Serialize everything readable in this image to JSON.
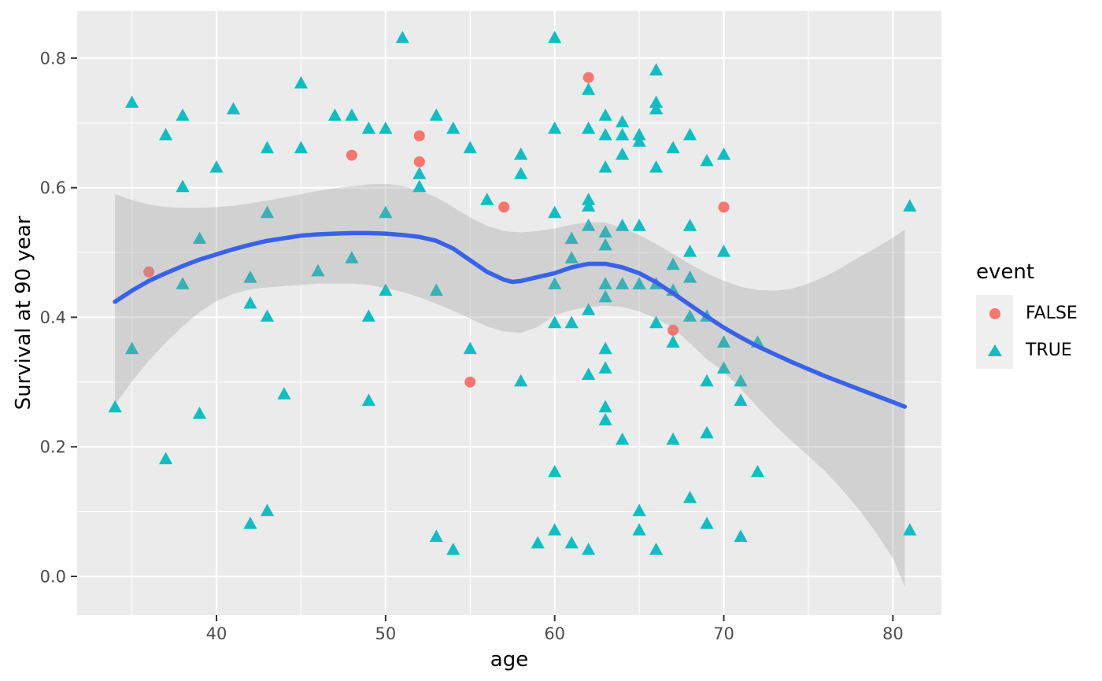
{
  "colors": {
    "panel": "#EBEBEB",
    "grid": "#FFFFFF",
    "point_false": "#F8766D",
    "point_true": "#0FBEC3",
    "smooth_line": "#3A62E8",
    "ribbon": "rgba(150,150,150,0.30)",
    "tick_mark": "#333333",
    "tick_text": "#4D4D4D",
    "axis_text": "#000000"
  },
  "legend": {
    "title": "event",
    "items": [
      {
        "label": "FALSE",
        "marker": "circle",
        "color": "#F8766D"
      },
      {
        "label": "TRUE",
        "marker": "triangle",
        "color": "#0FBEC3"
      }
    ]
  },
  "chart_data": {
    "type": "scatter",
    "title": "",
    "xlabel": "age",
    "ylabel": "Survival at 90 year",
    "xlim": [
      31.76,
      82.87
    ],
    "ylim": [
      -0.0595,
      0.8727
    ],
    "x_ticks": [
      40,
      50,
      60,
      70,
      80
    ],
    "x_tick_labels": [
      "40",
      "50",
      "60",
      "70",
      "80"
    ],
    "x_minor": [
      35,
      45,
      55,
      65,
      75
    ],
    "y_ticks": [
      0.0,
      0.2,
      0.4,
      0.6,
      0.8
    ],
    "y_tick_labels": [
      "0.0",
      "0.2",
      "0.4",
      "0.6",
      "0.8"
    ],
    "y_minor": [
      0.1,
      0.3,
      0.5,
      0.7
    ],
    "grid": true,
    "legend_position": "right",
    "series": [
      {
        "name": "FALSE",
        "marker": "circle",
        "color": "#F8766D",
        "points": [
          [
            36,
            0.47
          ],
          [
            48,
            0.65
          ],
          [
            52,
            0.68
          ],
          [
            52,
            0.64
          ],
          [
            57,
            0.57
          ],
          [
            62,
            0.77
          ],
          [
            55,
            0.3
          ],
          [
            67,
            0.38
          ],
          [
            70,
            0.57
          ]
        ]
      },
      {
        "name": "TRUE",
        "marker": "triangle",
        "color": "#0FBEC3",
        "points": [
          [
            35,
            0.73
          ],
          [
            38,
            0.71
          ],
          [
            37,
            0.68
          ],
          [
            41,
            0.72
          ],
          [
            45,
            0.76
          ],
          [
            43,
            0.66
          ],
          [
            45,
            0.66
          ],
          [
            47,
            0.71
          ],
          [
            48,
            0.71
          ],
          [
            49,
            0.69
          ],
          [
            40,
            0.63
          ],
          [
            38,
            0.6
          ],
          [
            43,
            0.56
          ],
          [
            39,
            0.52
          ],
          [
            38,
            0.45
          ],
          [
            42,
            0.46
          ],
          [
            46,
            0.47
          ],
          [
            48,
            0.49
          ],
          [
            51,
            0.83
          ],
          [
            60,
            0.83
          ],
          [
            62,
            0.75
          ],
          [
            66,
            0.78
          ],
          [
            66,
            0.73
          ],
          [
            66,
            0.72
          ],
          [
            63,
            0.71
          ],
          [
            53,
            0.71
          ],
          [
            50,
            0.69
          ],
          [
            52,
            0.62
          ],
          [
            54,
            0.69
          ],
          [
            60,
            0.69
          ],
          [
            62,
            0.69
          ],
          [
            63,
            0.68
          ],
          [
            64,
            0.7
          ],
          [
            64,
            0.68
          ],
          [
            65,
            0.68
          ],
          [
            65,
            0.67
          ],
          [
            55,
            0.66
          ],
          [
            58,
            0.65
          ],
          [
            63,
            0.63
          ],
          [
            64,
            0.65
          ],
          [
            66,
            0.63
          ],
          [
            58,
            0.62
          ],
          [
            52,
            0.6
          ],
          [
            56,
            0.58
          ],
          [
            60,
            0.56
          ],
          [
            62,
            0.58
          ],
          [
            62,
            0.57
          ],
          [
            50,
            0.56
          ],
          [
            62,
            0.54
          ],
          [
            63,
            0.53
          ],
          [
            63,
            0.51
          ],
          [
            64,
            0.54
          ],
          [
            65,
            0.54
          ],
          [
            61,
            0.52
          ],
          [
            61,
            0.49
          ],
          [
            60,
            0.45
          ],
          [
            50,
            0.44
          ],
          [
            53,
            0.44
          ],
          [
            63,
            0.45
          ],
          [
            63,
            0.43
          ],
          [
            64,
            0.45
          ],
          [
            65,
            0.45
          ],
          [
            62,
            0.41
          ],
          [
            68,
            0.68
          ],
          [
            67,
            0.66
          ],
          [
            69,
            0.64
          ],
          [
            70,
            0.65
          ],
          [
            81,
            0.57
          ],
          [
            68,
            0.54
          ],
          [
            68,
            0.5
          ],
          [
            70,
            0.5
          ],
          [
            67,
            0.48
          ],
          [
            68,
            0.46
          ],
          [
            66,
            0.45
          ],
          [
            67,
            0.44
          ],
          [
            42,
            0.42
          ],
          [
            43,
            0.4
          ],
          [
            35,
            0.35
          ],
          [
            34,
            0.26
          ],
          [
            39,
            0.25
          ],
          [
            44,
            0.28
          ],
          [
            49,
            0.27
          ],
          [
            37,
            0.18
          ],
          [
            43,
            0.1
          ],
          [
            42,
            0.08
          ],
          [
            49,
            0.4
          ],
          [
            60,
            0.39
          ],
          [
            61,
            0.39
          ],
          [
            66,
            0.39
          ],
          [
            55,
            0.35
          ],
          [
            63,
            0.35
          ],
          [
            62,
            0.31
          ],
          [
            63,
            0.32
          ],
          [
            58,
            0.3
          ],
          [
            63,
            0.26
          ],
          [
            63,
            0.24
          ],
          [
            64,
            0.21
          ],
          [
            60,
            0.16
          ],
          [
            65,
            0.1
          ],
          [
            53,
            0.06
          ],
          [
            54,
            0.04
          ],
          [
            59,
            0.05
          ],
          [
            60,
            0.07
          ],
          [
            61,
            0.05
          ],
          [
            62,
            0.04
          ],
          [
            65,
            0.07
          ],
          [
            66,
            0.04
          ],
          [
            68,
            0.4
          ],
          [
            69,
            0.4
          ],
          [
            67,
            0.36
          ],
          [
            70,
            0.36
          ],
          [
            72,
            0.36
          ],
          [
            70,
            0.32
          ],
          [
            69,
            0.3
          ],
          [
            71,
            0.3
          ],
          [
            71,
            0.27
          ],
          [
            67,
            0.21
          ],
          [
            69,
            0.22
          ],
          [
            72,
            0.16
          ],
          [
            68,
            0.12
          ],
          [
            69,
            0.08
          ],
          [
            71,
            0.06
          ],
          [
            81,
            0.07
          ]
        ]
      }
    ],
    "smooth": {
      "name": "loess-fit",
      "color": "#3A62E8",
      "points": [
        [
          34,
          0.424
        ],
        [
          35,
          0.441
        ],
        [
          36,
          0.456
        ],
        [
          37,
          0.468
        ],
        [
          38,
          0.479
        ],
        [
          39,
          0.489
        ],
        [
          40,
          0.497
        ],
        [
          41,
          0.505
        ],
        [
          42,
          0.512
        ],
        [
          43,
          0.518
        ],
        [
          44,
          0.522
        ],
        [
          45,
          0.526
        ],
        [
          46,
          0.528
        ],
        [
          47,
          0.529
        ],
        [
          48,
          0.53
        ],
        [
          49,
          0.53
        ],
        [
          50,
          0.529
        ],
        [
          51,
          0.527
        ],
        [
          52,
          0.524
        ],
        [
          53,
          0.518
        ],
        [
          54,
          0.506
        ],
        [
          55,
          0.488
        ],
        [
          56,
          0.47
        ],
        [
          57,
          0.458
        ],
        [
          57.5,
          0.4545
        ],
        [
          58,
          0.456
        ],
        [
          59,
          0.462
        ],
        [
          60,
          0.468
        ],
        [
          61,
          0.477
        ],
        [
          62,
          0.4825
        ],
        [
          63,
          0.4825
        ],
        [
          64,
          0.477
        ],
        [
          65,
          0.468
        ],
        [
          66,
          0.454
        ],
        [
          67,
          0.437
        ],
        [
          68,
          0.419
        ],
        [
          69,
          0.401
        ],
        [
          70,
          0.384
        ],
        [
          71,
          0.369
        ],
        [
          72,
          0.355
        ],
        [
          73,
          0.343
        ],
        [
          74,
          0.331
        ],
        [
          75,
          0.32
        ],
        [
          76,
          0.309
        ],
        [
          77,
          0.299
        ],
        [
          78,
          0.289
        ],
        [
          79,
          0.279
        ],
        [
          80,
          0.269
        ],
        [
          80.7,
          0.262
        ]
      ]
    },
    "ribbon": {
      "name": "confidence-band",
      "points": [
        [
          34,
          0.265,
          0.59
        ],
        [
          35,
          0.301,
          0.581
        ],
        [
          36,
          0.333,
          0.574
        ],
        [
          37,
          0.361,
          0.57
        ],
        [
          38,
          0.386,
          0.569
        ],
        [
          39,
          0.408,
          0.569
        ],
        [
          40,
          0.425,
          0.57
        ],
        [
          41,
          0.436,
          0.572
        ],
        [
          42,
          0.443,
          0.576
        ],
        [
          43,
          0.446,
          0.58
        ],
        [
          44,
          0.448,
          0.585
        ],
        [
          45,
          0.45,
          0.59
        ],
        [
          46,
          0.452,
          0.595
        ],
        [
          47,
          0.452,
          0.599
        ],
        [
          48,
          0.452,
          0.602
        ],
        [
          49,
          0.45,
          0.605
        ],
        [
          50,
          0.445,
          0.606
        ],
        [
          51,
          0.439,
          0.603
        ],
        [
          52,
          0.431,
          0.596
        ],
        [
          53,
          0.421,
          0.585
        ],
        [
          54,
          0.41,
          0.57
        ],
        [
          55,
          0.398,
          0.554
        ],
        [
          56,
          0.386,
          0.541
        ],
        [
          57,
          0.378,
          0.533
        ],
        [
          58,
          0.376,
          0.531
        ],
        [
          59,
          0.385,
          0.533
        ],
        [
          60,
          0.403,
          0.537
        ],
        [
          61,
          0.411,
          0.543
        ],
        [
          62,
          0.416,
          0.547
        ],
        [
          63,
          0.418,
          0.546
        ],
        [
          64,
          0.416,
          0.538
        ],
        [
          65,
          0.409,
          0.527
        ],
        [
          66,
          0.398,
          0.513
        ],
        [
          67,
          0.384,
          0.498
        ],
        [
          68,
          0.36,
          0.482
        ],
        [
          69,
          0.335,
          0.468
        ],
        [
          70,
          0.316,
          0.456
        ],
        [
          71,
          0.29,
          0.447
        ],
        [
          72,
          0.261,
          0.442
        ],
        [
          73,
          0.234,
          0.441
        ],
        [
          74,
          0.209,
          0.444
        ],
        [
          75,
          0.186,
          0.452
        ],
        [
          76,
          0.162,
          0.463
        ],
        [
          77,
          0.134,
          0.477
        ],
        [
          78,
          0.103,
          0.493
        ],
        [
          79,
          0.068,
          0.507
        ],
        [
          80,
          0.028,
          0.523
        ],
        [
          80.7,
          -0.016,
          0.535
        ]
      ]
    }
  }
}
